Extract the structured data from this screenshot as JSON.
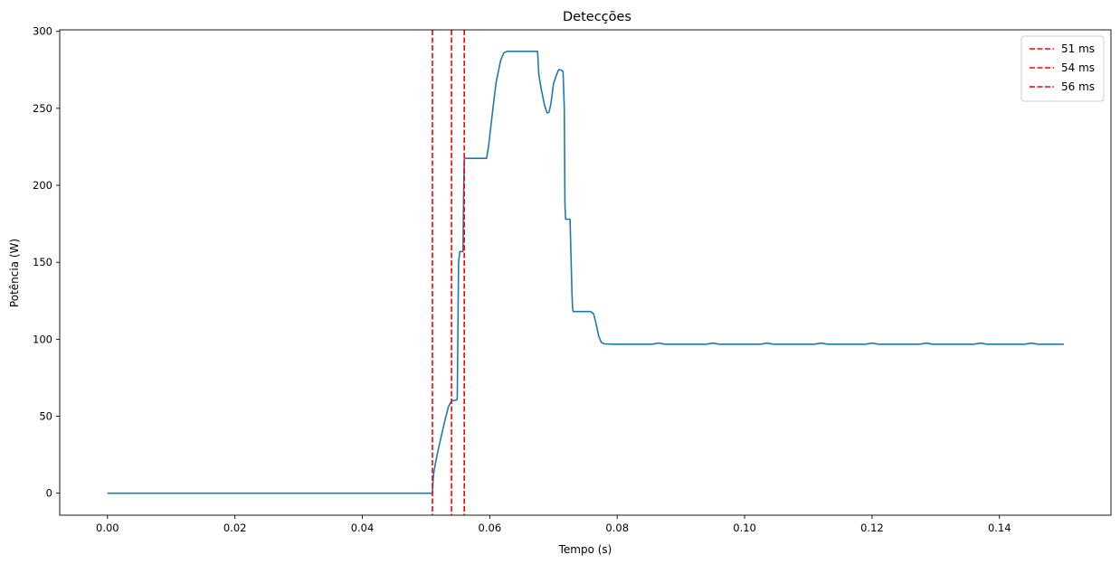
{
  "chart_data": {
    "type": "line",
    "title": "Detecções",
    "xlabel": "Tempo (s)",
    "ylabel": "Potência (W)",
    "xlim": [
      -0.0075,
      0.1575
    ],
    "ylim": [
      -14.3,
      301
    ],
    "xticks": [
      0.0,
      0.02,
      0.04,
      0.06,
      0.08,
      0.1,
      0.12,
      0.14
    ],
    "xtick_labels": [
      "0.00",
      "0.02",
      "0.04",
      "0.06",
      "0.08",
      "0.10",
      "0.12",
      "0.14"
    ],
    "yticks": [
      0,
      50,
      100,
      150,
      200,
      250,
      300
    ],
    "ytick_labels": [
      "0",
      "50",
      "100",
      "150",
      "200",
      "250",
      "300"
    ],
    "grid": false,
    "legend_position": "top-right",
    "line_color": "#1f77b4",
    "vline_color": "#ff0000",
    "series": [
      {
        "x": [
          0,
          0.051,
          0.0511,
          0.0512,
          0.0515,
          0.052,
          0.053,
          0.0535,
          0.054,
          0.0548,
          0.0549,
          0.0551,
          0.0553,
          0.0558,
          0.0559,
          0.056,
          0.0562,
          0.0575,
          0.0595,
          0.0598,
          0.0605,
          0.061,
          0.0617,
          0.0622,
          0.0627,
          0.063,
          0.0635,
          0.064,
          0.0675,
          0.0677,
          0.0681,
          0.0686,
          0.069,
          0.0693,
          0.0696,
          0.07,
          0.0705,
          0.0708,
          0.0711,
          0.0715,
          0.0717,
          0.0718,
          0.0719,
          0.0721,
          0.0726,
          0.0727,
          0.0729,
          0.073,
          0.0731,
          0.0733,
          0.0758,
          0.0763,
          0.0768,
          0.0771,
          0.0775,
          0.078,
          0.0793,
          0.0855,
          0.0865,
          0.0875,
          0.094,
          0.095,
          0.096,
          0.1025,
          0.1035,
          0.1045,
          0.111,
          0.112,
          0.113,
          0.119,
          0.12,
          0.121,
          0.1275,
          0.1285,
          0.1295,
          0.136,
          0.137,
          0.138,
          0.144,
          0.145,
          0.146,
          0.1501
        ],
        "y": [
          0,
          0,
          8,
          13,
          20,
          30,
          48,
          56,
          60,
          60.5,
          62,
          150,
          157,
          157,
          195,
          217,
          217.5,
          217.5,
          217.5,
          225,
          250,
          267,
          281,
          286,
          287,
          287,
          287,
          287,
          287,
          272,
          262,
          252,
          247,
          247.5,
          253,
          266,
          272,
          275,
          275,
          274,
          250,
          188,
          178,
          178,
          178,
          162,
          130,
          120,
          118,
          118,
          118,
          116.5,
          108,
          102,
          98,
          97,
          96.8,
          96.8,
          97.5,
          96.8,
          96.8,
          97.5,
          96.8,
          96.8,
          97.5,
          96.8,
          96.8,
          97.5,
          96.8,
          96.8,
          97.5,
          96.8,
          96.8,
          97.5,
          96.8,
          96.8,
          97.5,
          96.8,
          96.8,
          97.5,
          96.8,
          96.8
        ]
      }
    ],
    "vlines": [
      {
        "x": 0.051,
        "label": "51 ms"
      },
      {
        "x": 0.054,
        "label": "54 ms"
      },
      {
        "x": 0.056,
        "label": "56 ms"
      }
    ]
  }
}
